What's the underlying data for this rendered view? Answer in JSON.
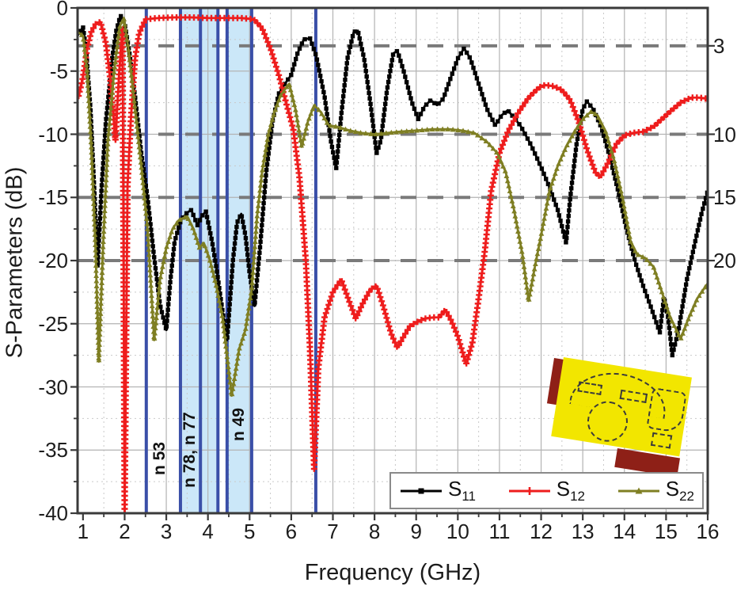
{
  "chart_data": {
    "type": "line",
    "title": "",
    "xlabel": "Frequency (GHz)",
    "ylabel": "S-Parameters (dB)",
    "xlim": [
      0.87,
      16
    ],
    "ylim": [
      -40,
      0
    ],
    "x_ticks": [
      1,
      2,
      3,
      4,
      5,
      6,
      7,
      8,
      9,
      10,
      11,
      12,
      13,
      14,
      15,
      16
    ],
    "x_minor_step": 0.5,
    "y_ticks": [
      0,
      -5,
      -10,
      -15,
      -20,
      -25,
      -30,
      -35,
      -40
    ],
    "y_minor_step": 2.5,
    "right_axis_ticks": [
      {
        "label": "3",
        "at": -3
      },
      {
        "label": "10",
        "at": -10
      },
      {
        "label": "15",
        "at": -15
      },
      {
        "label": "20",
        "at": -20
      }
    ],
    "dashed_reference_lines": [
      -3,
      -10,
      -15,
      -20
    ],
    "grid": "on",
    "legend_position": "bottom-right-inside",
    "band_markers": {
      "line_freqs": [
        2.52,
        3.34,
        3.82,
        4.24,
        4.46,
        5.05,
        6.59
      ],
      "shaded_regions": [
        [
          3.34,
          4.24
        ],
        [
          4.46,
          5.05
        ]
      ],
      "labels": [
        {
          "text": "n 53",
          "freq": 2.84,
          "db": -35.7
        },
        {
          "text": "n 78, n 77",
          "freq": 3.56,
          "db": -35.0
        },
        {
          "text": "n 49",
          "freq": 4.75,
          "db": -33.0
        }
      ]
    },
    "series": [
      {
        "name": "S11",
        "base": "S",
        "sub": "11",
        "color": "#000000",
        "marker": "square",
        "points": [
          [
            0.87,
            -2.2
          ],
          [
            1.0,
            -1.5
          ],
          [
            1.08,
            -3.5
          ],
          [
            1.18,
            -8.0
          ],
          [
            1.28,
            -15.0
          ],
          [
            1.35,
            -20.5
          ],
          [
            1.45,
            -14.0
          ],
          [
            1.55,
            -9.0
          ],
          [
            1.7,
            -4.0
          ],
          [
            1.8,
            -1.8
          ],
          [
            1.9,
            -0.6
          ],
          [
            2.0,
            -1.2
          ],
          [
            2.1,
            -3.2
          ],
          [
            2.25,
            -7.0
          ],
          [
            2.4,
            -11.5
          ],
          [
            2.55,
            -15.0
          ],
          [
            2.7,
            -19.5
          ],
          [
            2.85,
            -23.5
          ],
          [
            3.0,
            -25.5
          ],
          [
            3.1,
            -21.5
          ],
          [
            3.2,
            -18.5
          ],
          [
            3.35,
            -16.8
          ],
          [
            3.5,
            -16.2
          ],
          [
            3.6,
            -16.0
          ],
          [
            3.75,
            -17.2
          ],
          [
            3.85,
            -16.5
          ],
          [
            3.95,
            -16.1
          ],
          [
            4.1,
            -18.5
          ],
          [
            4.2,
            -20.5
          ],
          [
            4.35,
            -24.0
          ],
          [
            4.46,
            -26.3
          ],
          [
            4.6,
            -20.0
          ],
          [
            4.7,
            -17.0
          ],
          [
            4.8,
            -16.3
          ],
          [
            4.9,
            -18.0
          ],
          [
            5.0,
            -21.0
          ],
          [
            5.12,
            -23.6
          ],
          [
            5.25,
            -19.0
          ],
          [
            5.4,
            -13.0
          ],
          [
            5.55,
            -9.0
          ],
          [
            5.7,
            -6.8
          ],
          [
            5.85,
            -6.0
          ],
          [
            6.0,
            -5.3
          ],
          [
            6.15,
            -3.6
          ],
          [
            6.3,
            -2.5
          ],
          [
            6.45,
            -2.4
          ],
          [
            6.6,
            -3.8
          ],
          [
            6.8,
            -7.0
          ],
          [
            6.95,
            -10.5
          ],
          [
            7.08,
            -12.7
          ],
          [
            7.2,
            -8.5
          ],
          [
            7.35,
            -4.0
          ],
          [
            7.5,
            -1.9
          ],
          [
            7.6,
            -1.8
          ],
          [
            7.75,
            -4.0
          ],
          [
            7.9,
            -7.5
          ],
          [
            8.05,
            -11.5
          ],
          [
            8.15,
            -10.5
          ],
          [
            8.3,
            -6.5
          ],
          [
            8.45,
            -3.6
          ],
          [
            8.55,
            -3.4
          ],
          [
            8.7,
            -5.0
          ],
          [
            8.9,
            -7.5
          ],
          [
            9.05,
            -8.8
          ],
          [
            9.2,
            -7.8
          ],
          [
            9.35,
            -7.3
          ],
          [
            9.5,
            -7.7
          ],
          [
            9.65,
            -7.2
          ],
          [
            9.8,
            -5.8
          ],
          [
            10.0,
            -4.0
          ],
          [
            10.15,
            -3.2
          ],
          [
            10.3,
            -4.0
          ],
          [
            10.5,
            -6.0
          ],
          [
            10.7,
            -8.0
          ],
          [
            10.9,
            -9.3
          ],
          [
            11.05,
            -8.5
          ],
          [
            11.2,
            -8.1
          ],
          [
            11.35,
            -8.7
          ],
          [
            11.5,
            -9.3
          ],
          [
            11.75,
            -10.8
          ],
          [
            12.0,
            -12.6
          ],
          [
            12.2,
            -14.2
          ],
          [
            12.4,
            -16.0
          ],
          [
            12.6,
            -18.6
          ],
          [
            12.7,
            -15.0
          ],
          [
            12.85,
            -10.8
          ],
          [
            13.0,
            -8.0
          ],
          [
            13.1,
            -7.4
          ],
          [
            13.25,
            -8.0
          ],
          [
            13.45,
            -9.5
          ],
          [
            13.65,
            -11.8
          ],
          [
            13.85,
            -14.5
          ],
          [
            14.05,
            -17.5
          ],
          [
            14.25,
            -20.0
          ],
          [
            14.45,
            -22.0
          ],
          [
            14.65,
            -23.8
          ],
          [
            14.85,
            -25.7
          ],
          [
            14.95,
            -22.9
          ],
          [
            15.05,
            -24.5
          ],
          [
            15.15,
            -27.5
          ],
          [
            15.3,
            -25.5
          ],
          [
            15.5,
            -21.5
          ],
          [
            15.7,
            -18.5
          ],
          [
            15.85,
            -16.3
          ],
          [
            16.0,
            -14.5
          ]
        ]
      },
      {
        "name": "S12",
        "base": "S",
        "sub": "12",
        "color": "#ee1d1d",
        "marker": "plus",
        "points": [
          [
            0.87,
            -7.3
          ],
          [
            1.0,
            -5.5
          ],
          [
            1.1,
            -3.2
          ],
          [
            1.2,
            -1.9
          ],
          [
            1.3,
            -1.3
          ],
          [
            1.42,
            -1.1
          ],
          [
            1.55,
            -2.8
          ],
          [
            1.65,
            -5.5
          ],
          [
            1.78,
            -10.5
          ],
          [
            1.87,
            -5.0
          ],
          [
            1.95,
            -1.6
          ],
          [
            2.0,
            -40.0
          ],
          [
            2.07,
            -14.0
          ],
          [
            2.15,
            -8.8
          ],
          [
            2.25,
            -4.0
          ],
          [
            2.35,
            -2.0
          ],
          [
            2.5,
            -0.9
          ],
          [
            2.8,
            -0.8
          ],
          [
            3.2,
            -0.75
          ],
          [
            3.6,
            -0.75
          ],
          [
            4.0,
            -0.8
          ],
          [
            4.4,
            -0.8
          ],
          [
            4.8,
            -0.8
          ],
          [
            5.1,
            -0.9
          ],
          [
            5.3,
            -1.6
          ],
          [
            5.5,
            -3.2
          ],
          [
            5.7,
            -5.3
          ],
          [
            5.9,
            -7.8
          ],
          [
            6.05,
            -9.6
          ],
          [
            6.2,
            -13.5
          ],
          [
            6.35,
            -20.0
          ],
          [
            6.45,
            -27.0
          ],
          [
            6.55,
            -36.5
          ],
          [
            6.65,
            -28.5
          ],
          [
            6.8,
            -24.5
          ],
          [
            7.0,
            -22.5
          ],
          [
            7.2,
            -21.5
          ],
          [
            7.4,
            -23.3
          ],
          [
            7.55,
            -24.6
          ],
          [
            7.7,
            -23.5
          ],
          [
            7.9,
            -22.3
          ],
          [
            8.05,
            -22.0
          ],
          [
            8.2,
            -23.5
          ],
          [
            8.4,
            -25.8
          ],
          [
            8.55,
            -26.9
          ],
          [
            8.7,
            -26.0
          ],
          [
            8.85,
            -25.2
          ],
          [
            9.0,
            -24.9
          ],
          [
            9.2,
            -24.6
          ],
          [
            9.4,
            -24.5
          ],
          [
            9.55,
            -24.5
          ],
          [
            9.7,
            -23.9
          ],
          [
            9.85,
            -24.8
          ],
          [
            10.0,
            -26.0
          ],
          [
            10.2,
            -28.2
          ],
          [
            10.35,
            -26.5
          ],
          [
            10.5,
            -23.0
          ],
          [
            10.65,
            -19.2
          ],
          [
            10.8,
            -14.5
          ],
          [
            11.0,
            -11.5
          ],
          [
            11.2,
            -9.8
          ],
          [
            11.45,
            -8.3
          ],
          [
            11.7,
            -7.1
          ],
          [
            11.95,
            -6.3
          ],
          [
            12.1,
            -6.1
          ],
          [
            12.3,
            -6.2
          ],
          [
            12.5,
            -6.5
          ],
          [
            12.7,
            -7.3
          ],
          [
            12.9,
            -9.0
          ],
          [
            13.1,
            -11.2
          ],
          [
            13.3,
            -13.0
          ],
          [
            13.42,
            -13.4
          ],
          [
            13.6,
            -12.3
          ],
          [
            13.8,
            -10.8
          ],
          [
            14.0,
            -10.1
          ],
          [
            14.2,
            -9.9
          ],
          [
            14.45,
            -9.8
          ],
          [
            14.7,
            -9.4
          ],
          [
            14.9,
            -8.8
          ],
          [
            15.1,
            -8.2
          ],
          [
            15.35,
            -7.5
          ],
          [
            15.6,
            -7.1
          ],
          [
            15.8,
            -7.1
          ],
          [
            16.0,
            -7.2
          ]
        ]
      },
      {
        "name": "S22",
        "base": "S",
        "sub": "22",
        "color": "#7f7f23",
        "marker": "tri",
        "points": [
          [
            0.87,
            -1.9
          ],
          [
            1.0,
            -2.2
          ],
          [
            1.1,
            -5.0
          ],
          [
            1.2,
            -11.0
          ],
          [
            1.3,
            -19.0
          ],
          [
            1.38,
            -28.0
          ],
          [
            1.48,
            -19.0
          ],
          [
            1.6,
            -10.5
          ],
          [
            1.75,
            -5.0
          ],
          [
            1.88,
            -1.5
          ],
          [
            1.98,
            -0.8
          ],
          [
            2.1,
            -3.5
          ],
          [
            2.25,
            -8.0
          ],
          [
            2.4,
            -12.5
          ],
          [
            2.55,
            -17.5
          ],
          [
            2.71,
            -26.3
          ],
          [
            2.85,
            -21.5
          ],
          [
            3.0,
            -19.0
          ],
          [
            3.15,
            -17.5
          ],
          [
            3.3,
            -16.8
          ],
          [
            3.5,
            -16.5
          ],
          [
            3.65,
            -17.5
          ],
          [
            3.8,
            -19.0
          ],
          [
            3.9,
            -18.6
          ],
          [
            4.05,
            -20.0
          ],
          [
            4.2,
            -22.0
          ],
          [
            4.35,
            -24.5
          ],
          [
            4.57,
            -30.7
          ],
          [
            4.75,
            -27.0
          ],
          [
            4.9,
            -25.5
          ],
          [
            5.05,
            -22.3
          ],
          [
            5.18,
            -16.5
          ],
          [
            5.3,
            -13.0
          ],
          [
            5.45,
            -10.0
          ],
          [
            5.6,
            -8.2
          ],
          [
            5.75,
            -6.9
          ],
          [
            5.95,
            -6.0
          ],
          [
            6.1,
            -8.0
          ],
          [
            6.25,
            -11.0
          ],
          [
            6.4,
            -9.0
          ],
          [
            6.55,
            -7.7
          ],
          [
            6.7,
            -8.2
          ],
          [
            6.9,
            -9.3
          ],
          [
            7.1,
            -9.4
          ],
          [
            7.4,
            -9.7
          ],
          [
            7.7,
            -9.9
          ],
          [
            8.0,
            -10.0
          ],
          [
            8.3,
            -9.9
          ],
          [
            8.6,
            -9.8
          ],
          [
            9.0,
            -9.7
          ],
          [
            9.4,
            -9.6
          ],
          [
            9.8,
            -9.6
          ],
          [
            10.1,
            -9.7
          ],
          [
            10.4,
            -9.9
          ],
          [
            10.7,
            -10.6
          ],
          [
            10.95,
            -11.5
          ],
          [
            11.15,
            -13.0
          ],
          [
            11.35,
            -16.0
          ],
          [
            11.55,
            -19.5
          ],
          [
            11.7,
            -23.2
          ],
          [
            11.85,
            -20.5
          ],
          [
            12.0,
            -18.0
          ],
          [
            12.2,
            -14.5
          ],
          [
            12.4,
            -12.5
          ],
          [
            12.6,
            -11.0
          ],
          [
            12.8,
            -9.8
          ],
          [
            13.0,
            -8.8
          ],
          [
            13.2,
            -8.2
          ],
          [
            13.35,
            -8.5
          ],
          [
            13.55,
            -9.8
          ],
          [
            13.75,
            -12.0
          ],
          [
            13.95,
            -15.0
          ],
          [
            14.15,
            -18.5
          ],
          [
            14.3,
            -19.5
          ],
          [
            14.5,
            -19.8
          ],
          [
            14.7,
            -20.5
          ],
          [
            14.9,
            -22.5
          ],
          [
            15.1,
            -24.5
          ],
          [
            15.35,
            -26.2
          ],
          [
            15.55,
            -24.5
          ],
          [
            15.75,
            -23.0
          ],
          [
            16.0,
            -21.8
          ]
        ]
      }
    ]
  },
  "colors": {
    "band_fill": "#cbe7f8",
    "band_line": "#3a4fa8",
    "dashed_grid": "#7a7a7a",
    "major_grid": "#b3b3b3",
    "minor_grid": "#c9c9c9",
    "spine": "#3a3a3a",
    "text": "#1c1c1c"
  },
  "inset": {
    "name": "antenna-layout-top-view",
    "board_color": "#f2e600",
    "connector_color": "#8e2017",
    "trace_color": "#3b3b3b"
  }
}
